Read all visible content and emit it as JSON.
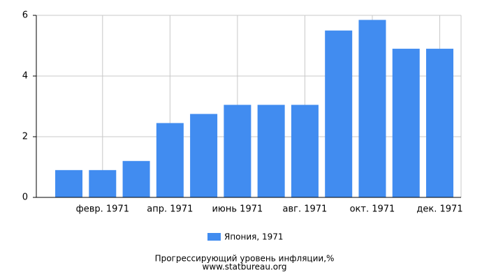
{
  "chart_data": {
    "type": "bar",
    "title": "Прогрессирующий уровень инфляции,%",
    "source": "www.statbureau.org",
    "categories": [
      null,
      "февр. 1971",
      null,
      "апр. 1971",
      null,
      "июнь 1971",
      null,
      "авг. 1971",
      null,
      "окт. 1971",
      null,
      "дек. 1971"
    ],
    "series": [
      {
        "name": "Япония, 1971",
        "color": "#418cf0",
        "values": [
          0.9,
          0.9,
          1.2,
          2.45,
          2.75,
          3.05,
          3.05,
          3.05,
          5.5,
          5.85,
          4.9,
          4.9
        ]
      }
    ],
    "ylim": [
      0,
      6
    ],
    "yticks": [
      0,
      2,
      4,
      6
    ],
    "grid": true
  }
}
